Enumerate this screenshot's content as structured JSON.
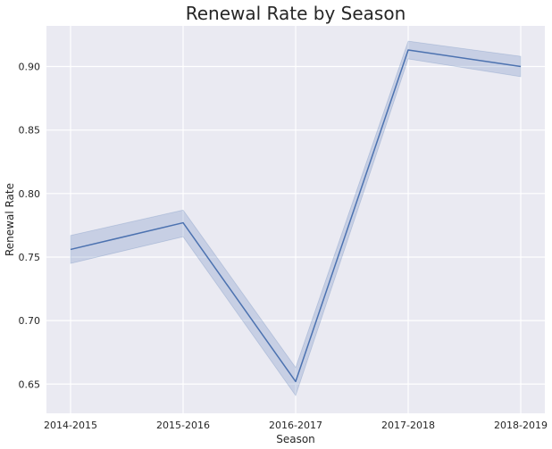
{
  "chart_data": {
    "type": "line",
    "title": "Renewal Rate by Season",
    "xlabel": "Season",
    "ylabel": "Renewal Rate",
    "categories": [
      "2014-2015",
      "2015-2016",
      "2016-2017",
      "2017-2018",
      "2018-2019"
    ],
    "series": [
      {
        "values": [
          0.756,
          0.777,
          0.652,
          0.913,
          0.9
        ],
        "ci_lower": [
          0.745,
          0.766,
          0.641,
          0.906,
          0.892
        ],
        "ci_upper": [
          0.767,
          0.787,
          0.663,
          0.92,
          0.908
        ],
        "color": "#4c72b0"
      }
    ],
    "yticks": [
      "0.65",
      "0.70",
      "0.75",
      "0.80",
      "0.85",
      "0.90"
    ],
    "ylim": [
      0.627,
      0.932
    ],
    "grid": true,
    "style": {
      "background": "#eaeaf2",
      "grid_color": "#ffffff",
      "line_color": "#4c72b0",
      "band_color": "#4c72b0"
    }
  }
}
